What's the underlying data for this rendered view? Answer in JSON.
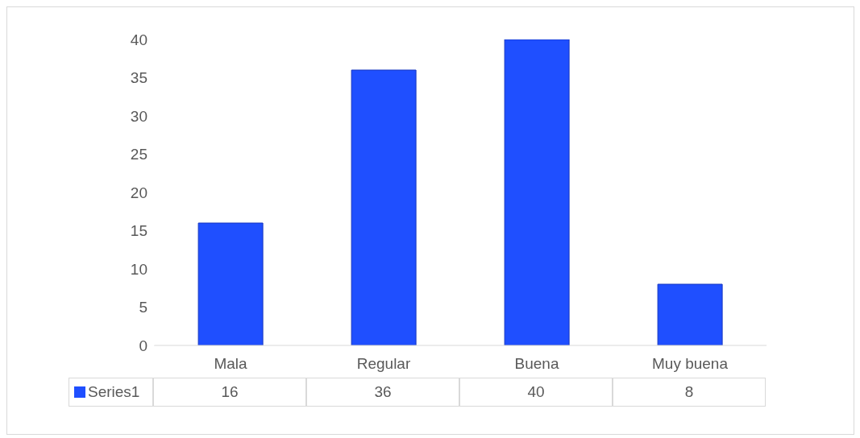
{
  "chart_data": {
    "type": "bar",
    "categories": [
      "Mala",
      "Regular",
      "Buena",
      "Muy buena"
    ],
    "series": [
      {
        "name": "Series1",
        "color": "#1f4fff",
        "values": [
          16,
          36,
          40,
          8
        ]
      }
    ],
    "ylim": [
      0,
      40
    ],
    "yticks": [
      0,
      5,
      10,
      15,
      20,
      25,
      30,
      35,
      40
    ],
    "legend": "bottom",
    "data_labels": true
  }
}
